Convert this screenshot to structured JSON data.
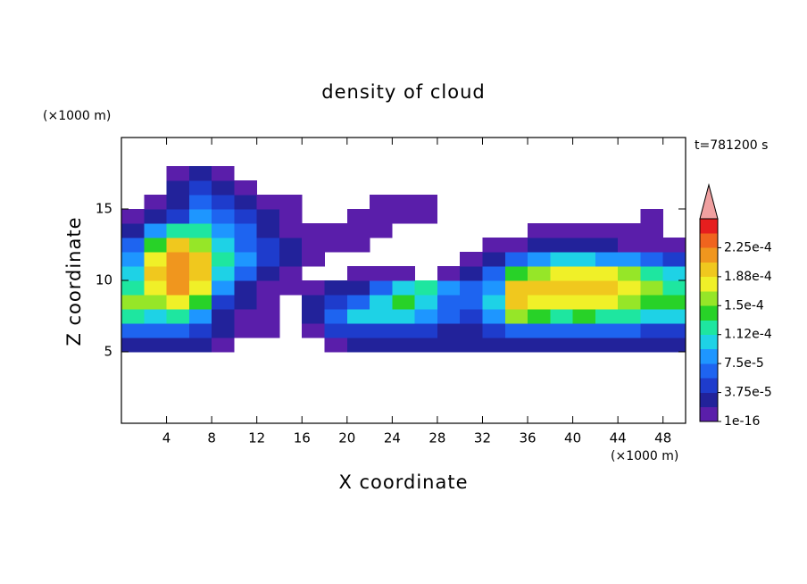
{
  "chart_data": {
    "type": "contour",
    "title": "density of cloud",
    "xlabel": "X coordinate",
    "ylabel": "Z coordinate",
    "x_unit": "(×1000 m)",
    "y_unit": "(×1000 m)",
    "annotation": "t=781200 s",
    "xlim": [
      0,
      50
    ],
    "ylim": [
      0,
      20
    ],
    "xticks": [
      4,
      8,
      12,
      16,
      20,
      24,
      28,
      32,
      36,
      40,
      44,
      48
    ],
    "yticks": [
      5,
      10,
      15
    ],
    "x": [
      1,
      3,
      5,
      7,
      9,
      11,
      13,
      15,
      17,
      19,
      21,
      23,
      25,
      27,
      29,
      31,
      33,
      35,
      37,
      39,
      41,
      43,
      45,
      47,
      49
    ],
    "y": [
      5.5,
      6.5,
      7.5,
      8.5,
      9.5,
      10.5,
      11.5,
      12.5,
      13.5,
      14.5,
      15.5,
      16.5,
      17.5
    ],
    "z": [
      [
        3e-05,
        3e-05,
        3e-05,
        2e-05,
        1e-05,
        0,
        0,
        0,
        0,
        1e-05,
        2e-05,
        2e-05,
        2e-05,
        2e-05,
        2e-05,
        2e-05,
        2e-05,
        3e-05,
        3e-05,
        3e-05,
        3e-05,
        3e-05,
        3e-05,
        3e-05,
        3e-05
      ],
      [
        7e-05,
        6e-05,
        6e-05,
        5e-05,
        2e-05,
        1e-05,
        1e-05,
        0,
        1e-05,
        4e-05,
        5e-05,
        5e-05,
        5e-05,
        4e-05,
        3e-05,
        3e-05,
        5e-05,
        7e-05,
        7e-05,
        6e-05,
        6e-05,
        6e-05,
        6e-05,
        5e-05,
        5e-05
      ],
      [
        0.00012,
        0.00011,
        0.00012,
        9e-05,
        3e-05,
        1e-05,
        1e-05,
        0,
        2e-05,
        7e-05,
        0.0001,
        0.00011,
        0.0001,
        8e-05,
        6e-05,
        5e-05,
        8e-05,
        0.00015,
        0.00014,
        0.00013,
        0.00014,
        0.00013,
        0.00012,
        0.00011,
        0.00011
      ],
      [
        0.00016,
        0.00016,
        0.00017,
        0.00014,
        5e-05,
        2e-05,
        1e-05,
        0,
        2e-05,
        5e-05,
        7e-05,
        0.00011,
        0.00014,
        0.0001,
        7e-05,
        6e-05,
        0.0001,
        0.00019,
        0.00017,
        0.00017,
        0.00018,
        0.00017,
        0.00016,
        0.00014,
        0.00014
      ],
      [
        0.00013,
        0.00018,
        0.00021,
        0.00017,
        8e-05,
        3e-05,
        1e-05,
        1e-05,
        1e-05,
        2e-05,
        3e-05,
        6e-05,
        0.0001,
        0.00012,
        8e-05,
        6e-05,
        8e-05,
        0.0002,
        0.00019,
        0.00019,
        0.0002,
        0.00019,
        0.00017,
        0.00015,
        0.00013
      ],
      [
        0.0001,
        0.00019,
        0.00022,
        0.00019,
        0.00011,
        6e-05,
        3e-05,
        1e-05,
        0,
        0,
        1e-05,
        1e-05,
        1e-05,
        0,
        1e-05,
        3e-05,
        6e-05,
        0.00014,
        0.00016,
        0.00018,
        0.00018,
        0.00017,
        0.00015,
        0.00013,
        0.0001
      ],
      [
        8e-05,
        0.00017,
        0.00022,
        0.0002,
        0.00012,
        8e-05,
        4e-05,
        2e-05,
        1e-05,
        0,
        0,
        0,
        0,
        0,
        0,
        1e-05,
        3e-05,
        6e-05,
        8e-05,
        0.0001,
        0.0001,
        9e-05,
        8e-05,
        6e-05,
        4e-05
      ],
      [
        6e-05,
        0.00014,
        0.00019,
        0.00016,
        0.00011,
        7e-05,
        4e-05,
        2e-05,
        1e-05,
        1e-05,
        1e-05,
        0,
        0,
        0,
        0,
        0,
        1e-05,
        1e-05,
        2e-05,
        2e-05,
        2e-05,
        2e-05,
        1e-05,
        1e-05,
        1e-05
      ],
      [
        3e-05,
        8e-05,
        0.00012,
        0.00012,
        9e-05,
        6e-05,
        3e-05,
        1e-05,
        1e-05,
        1e-05,
        1e-05,
        1e-05,
        0,
        0,
        0,
        0,
        0,
        0,
        1e-05,
        1e-05,
        1e-05,
        1e-05,
        1e-05,
        1e-05,
        0
      ],
      [
        1e-05,
        3e-05,
        5e-05,
        8e-05,
        6e-05,
        4e-05,
        2e-05,
        1e-05,
        0,
        0,
        1e-05,
        1e-05,
        1e-05,
        1e-05,
        0,
        0,
        0,
        0,
        0,
        0,
        0,
        0,
        0,
        1e-05,
        0
      ],
      [
        0,
        1e-05,
        3e-05,
        6e-05,
        4e-05,
        2e-05,
        1e-05,
        1e-05,
        0,
        0,
        0,
        1e-05,
        1e-05,
        1e-05,
        0,
        0,
        0,
        0,
        0,
        0,
        0,
        0,
        0,
        0,
        0
      ],
      [
        0,
        0,
        2e-05,
        5e-05,
        3e-05,
        1e-05,
        0,
        0,
        0,
        0,
        0,
        0,
        0,
        0,
        0,
        0,
        0,
        0,
        0,
        0,
        0,
        0,
        0,
        0,
        0
      ],
      [
        0,
        0,
        1e-05,
        2e-05,
        1e-05,
        0,
        0,
        0,
        0,
        0,
        0,
        0,
        0,
        0,
        0,
        0,
        0,
        0,
        0,
        0,
        0,
        0,
        0,
        0,
        0
      ]
    ],
    "levels": [
      1e-16,
      1.875e-05,
      3.75e-05,
      5.625e-05,
      7.5e-05,
      9.375e-05,
      0.0001125,
      0.00013125,
      0.00015,
      0.00016875,
      0.0001875,
      0.00020625,
      0.000225,
      0.00024375,
      0.0002625
    ],
    "colors": [
      "#5a1eaa",
      "#22229a",
      "#1e3ccc",
      "#1e64f0",
      "#1e96ff",
      "#1ed2e6",
      "#1ee6a0",
      "#28d228",
      "#96e628",
      "#f0f028",
      "#f0c81e",
      "#f0961e",
      "#f0641e",
      "#e61e1e"
    ],
    "over_color": "#f0a0a0",
    "colorbar_ticks": [
      {
        "value": 1e-16,
        "label": "1e-16"
      },
      {
        "value": 3.75e-05,
        "label": "3.75e-5"
      },
      {
        "value": 7.5e-05,
        "label": "7.5e-5"
      },
      {
        "value": 0.0001125,
        "label": "1.12e-4"
      },
      {
        "value": 0.00015,
        "label": "1.5e-4"
      },
      {
        "value": 0.0001875,
        "label": "1.88e-4"
      },
      {
        "value": 0.000225,
        "label": "2.25e-4"
      }
    ]
  }
}
